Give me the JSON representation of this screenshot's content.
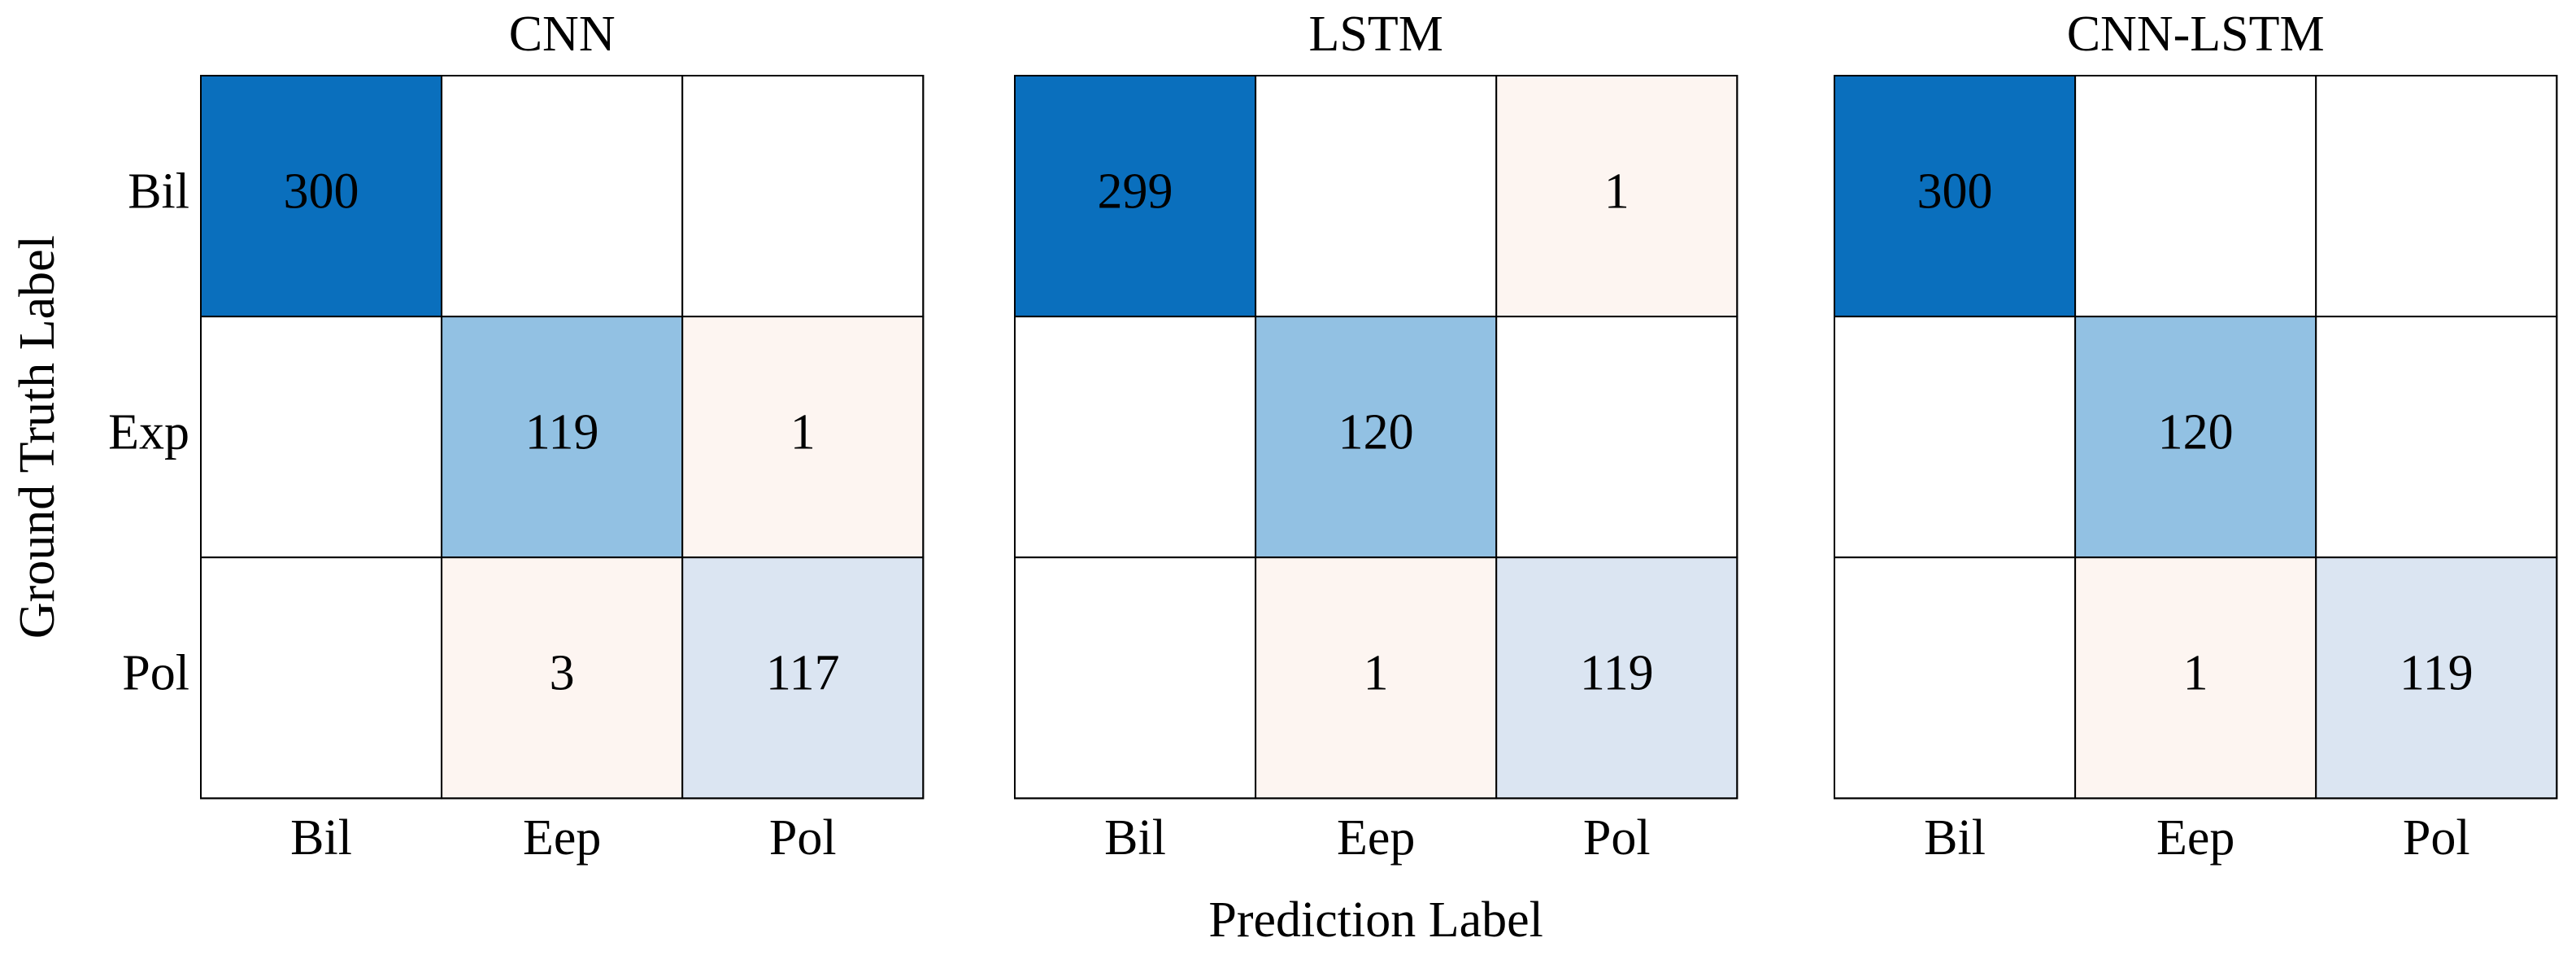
{
  "chart_data": [
    {
      "type": "heatmap",
      "title": "CNN",
      "ylabel": "Ground Truth Label",
      "x_categories": [
        "Bil",
        "Eep",
        "Pol"
      ],
      "y_categories": [
        "Bil",
        "Exp",
        "Pol"
      ],
      "values": [
        [
          300,
          null,
          null
        ],
        [
          null,
          119,
          1
        ],
        [
          null,
          3,
          117
        ]
      ],
      "colors": [
        [
          "#0a6fbd",
          "#ffffff",
          "#ffffff"
        ],
        [
          "#ffffff",
          "#92c1e3",
          "#fdf5f1"
        ],
        [
          "#ffffff",
          "#fdf5f1",
          "#dbe5f2"
        ]
      ]
    },
    {
      "type": "heatmap",
      "title": "LSTM",
      "xlabel": "Prediction Label",
      "x_categories": [
        "Bil",
        "Eep",
        "Pol"
      ],
      "y_categories": [
        "Bil",
        "Exp",
        "Pol"
      ],
      "values": [
        [
          299,
          null,
          1
        ],
        [
          null,
          120,
          null
        ],
        [
          null,
          1,
          119
        ]
      ],
      "colors": [
        [
          "#0a6fbd",
          "#ffffff",
          "#fdf5f1"
        ],
        [
          "#ffffff",
          "#92c1e3",
          "#ffffff"
        ],
        [
          "#ffffff",
          "#fdf5f1",
          "#dbe5f2"
        ]
      ]
    },
    {
      "type": "heatmap",
      "title": "CNN-LSTM",
      "x_categories": [
        "Bil",
        "Eep",
        "Pol"
      ],
      "y_categories": [
        "Bil",
        "Exp",
        "Pol"
      ],
      "values": [
        [
          300,
          null,
          null
        ],
        [
          null,
          120,
          null
        ],
        [
          null,
          1,
          119
        ]
      ],
      "colors": [
        [
          "#0a6fbd",
          "#ffffff",
          "#ffffff"
        ],
        [
          "#ffffff",
          "#92c1e3",
          "#ffffff"
        ],
        [
          "#ffffff",
          "#fdf5f1",
          "#dbe5f2"
        ]
      ]
    }
  ]
}
